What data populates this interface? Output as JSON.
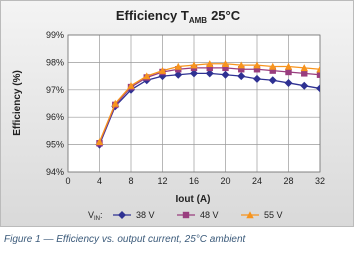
{
  "chart_data": {
    "type": "line",
    "title": "Efficiency T",
    "title_subscript": "AMB",
    "title_suffix": "25°C",
    "x_label": "Iout (A)",
    "y_label": "Efficiency (%)",
    "legend_title": "V",
    "legend_title_subscript": "IN",
    "legend_title_suffix": ":",
    "caption": "Figure 1 — Efficiency vs. output current, 25°C ambient",
    "x": [
      4,
      6,
      8,
      10,
      12,
      14,
      16,
      18,
      20,
      22,
      24,
      26,
      28,
      30,
      32
    ],
    "series": [
      {
        "name": "38 V",
        "color": "#2e3192",
        "marker": "diamond",
        "values": [
          95.0,
          96.4,
          97.0,
          97.35,
          97.5,
          97.55,
          97.6,
          97.6,
          97.55,
          97.5,
          97.4,
          97.35,
          97.25,
          97.15,
          97.05
        ]
      },
      {
        "name": "48 V",
        "color": "#993d7e",
        "marker": "square",
        "values": [
          95.05,
          96.45,
          97.1,
          97.45,
          97.65,
          97.75,
          97.8,
          97.8,
          97.8,
          97.75,
          97.75,
          97.7,
          97.65,
          97.6,
          97.55
        ]
      },
      {
        "name": "55 V",
        "color": "#f7941d",
        "marker": "triangle",
        "values": [
          95.1,
          96.5,
          97.15,
          97.5,
          97.7,
          97.85,
          97.9,
          97.95,
          97.95,
          97.9,
          97.9,
          97.85,
          97.85,
          97.8,
          97.75
        ]
      }
    ],
    "xlim": [
      0,
      32
    ],
    "xticks": [
      0,
      4,
      8,
      12,
      16,
      20,
      24,
      28,
      32
    ],
    "ylim": [
      94,
      99
    ],
    "yticks": [
      {
        "value": 94,
        "label": "94%"
      },
      {
        "value": 95,
        "label": "95%"
      },
      {
        "value": 96,
        "label": "96%"
      },
      {
        "value": 97,
        "label": "97%"
      },
      {
        "value": 98,
        "label": "98%"
      },
      {
        "value": 99,
        "label": "99%"
      }
    ],
    "grid": true
  }
}
